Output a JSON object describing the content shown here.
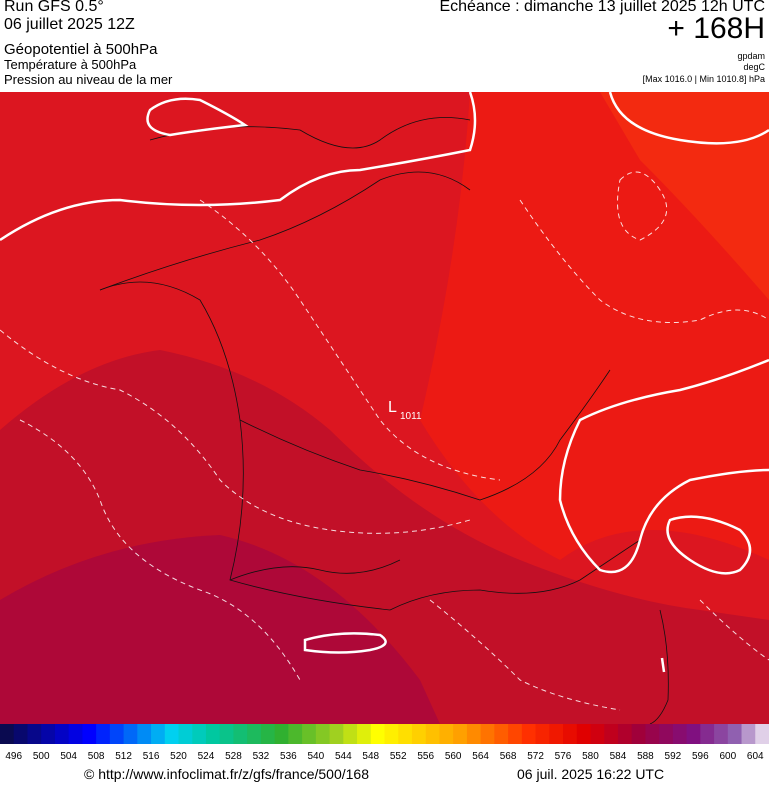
{
  "header": {
    "left": [
      "Run GFS 0.5°",
      "06 juillet 2025 12Z",
      "Géopotentiel à 500hPa",
      "Température à 500hPa",
      "Pression au niveau de la mer"
    ],
    "right": {
      "echeance": "Echéance : dimanche 13 juillet 2025 12h UTC",
      "lead": "+ 168H",
      "units": [
        "gpdam",
        "degC"
      ],
      "pressure": "[Max 1016.0 | Min 1010.8] hPa"
    }
  },
  "map": {
    "low": {
      "symbol": "L",
      "value": "1011"
    }
  },
  "legend": {
    "labels": [
      496,
      500,
      504,
      508,
      512,
      516,
      520,
      524,
      528,
      532,
      536,
      540,
      544,
      548,
      552,
      556,
      560,
      564,
      568,
      572,
      576,
      580,
      584,
      588,
      592,
      596,
      600,
      604
    ]
  },
  "footer": {
    "source": "© http://www.infoclimat.fr/z/gfs/france/500/168",
    "date": "06 juil. 2025 16:22 UTC"
  }
}
